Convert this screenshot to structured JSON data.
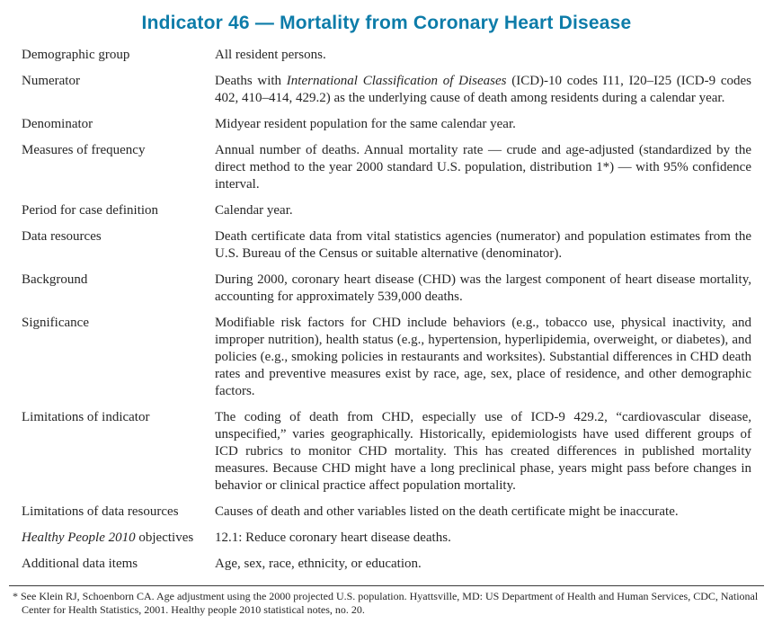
{
  "title": "Indicator 46 — Mortality from Coronary Heart Disease",
  "colors": {
    "title_accent": "#0d7ca9",
    "body_text": "#262626",
    "background": "#ffffff"
  },
  "rows": [
    {
      "label": [
        {
          "text": "Demographic group"
        }
      ],
      "value": [
        {
          "text": "All resident persons."
        }
      ]
    },
    {
      "label": [
        {
          "text": "Numerator"
        }
      ],
      "value": [
        {
          "text": "Deaths with "
        },
        {
          "text": "International Classification of Diseases",
          "italic": true
        },
        {
          "text": " (ICD)-10 codes I11, I20–I25 (ICD-9 codes 402, 410–414, 429.2) as the underlying cause of death among residents during a calendar year."
        }
      ]
    },
    {
      "label": [
        {
          "text": "Denominator"
        }
      ],
      "value": [
        {
          "text": "Midyear resident population for the same calendar year."
        }
      ]
    },
    {
      "label": [
        {
          "text": "Measures of frequency"
        }
      ],
      "value": [
        {
          "text": "Annual number of deaths. Annual mortality rate — crude and age-adjusted (standardized by the direct method to the year 2000 standard U.S. population, distribution 1*) — with 95% confidence interval."
        }
      ]
    },
    {
      "label": [
        {
          "text": "Period for case definition"
        }
      ],
      "value": [
        {
          "text": "Calendar year."
        }
      ]
    },
    {
      "label": [
        {
          "text": "Data resources"
        }
      ],
      "value": [
        {
          "text": "Death certificate data from vital statistics agencies (numerator) and population estimates from the U.S. Bureau of the Census or suitable alternative (denominator)."
        }
      ]
    },
    {
      "label": [
        {
          "text": "Background"
        }
      ],
      "value": [
        {
          "text": "During 2000, coronary heart disease (CHD) was the largest component of heart disease mortality, accounting for approximately 539,000 deaths."
        }
      ]
    },
    {
      "label": [
        {
          "text": "Significance"
        }
      ],
      "value": [
        {
          "text": "Modifiable risk factors for CHD include behaviors (e.g., tobacco use, physical inactivity, and improper nutrition), health status (e.g., hypertension, hyperlipidemia, overweight, or diabetes), and policies (e.g., smoking policies in restaurants and worksites). Substantial differences in CHD death rates and preventive measures exist by race, age, sex, place of residence, and other demographic factors."
        }
      ]
    },
    {
      "label": [
        {
          "text": "Limitations of indicator"
        }
      ],
      "value": [
        {
          "text": "The coding of death from CHD, especially use of ICD-9 429.2, “cardiovascular disease, unspecified,” varies geographically. Historically, epidemiologists have used different groups of ICD rubrics to monitor CHD mortality. This has created differences in published mortality measures. Because CHD might have a long preclinical phase, years might pass before changes in behavior or clinical practice affect population mortality."
        }
      ]
    },
    {
      "label": [
        {
          "text": "Limitations of data resources"
        }
      ],
      "value": [
        {
          "text": "Causes of death and other variables listed on the death certificate might be inaccurate."
        }
      ]
    },
    {
      "label": [
        {
          "text": "Healthy People 2010",
          "italic": true
        },
        {
          "text": " objectives"
        }
      ],
      "value": [
        {
          "text": "12.1: Reduce coronary heart disease deaths."
        }
      ]
    },
    {
      "label": [
        {
          "text": "Additional data items"
        }
      ],
      "value": [
        {
          "text": "Age, sex, race, ethnicity, or education."
        }
      ]
    }
  ],
  "footnote": {
    "text": "* See Klein RJ, Schoenborn CA. Age adjustment using the 2000 projected U.S. population. Hyattsville, MD: US Department of Health and Human Services, CDC, National Center for Health Statistics, 2001. Healthy people 2010 statistical notes, no. 20."
  }
}
